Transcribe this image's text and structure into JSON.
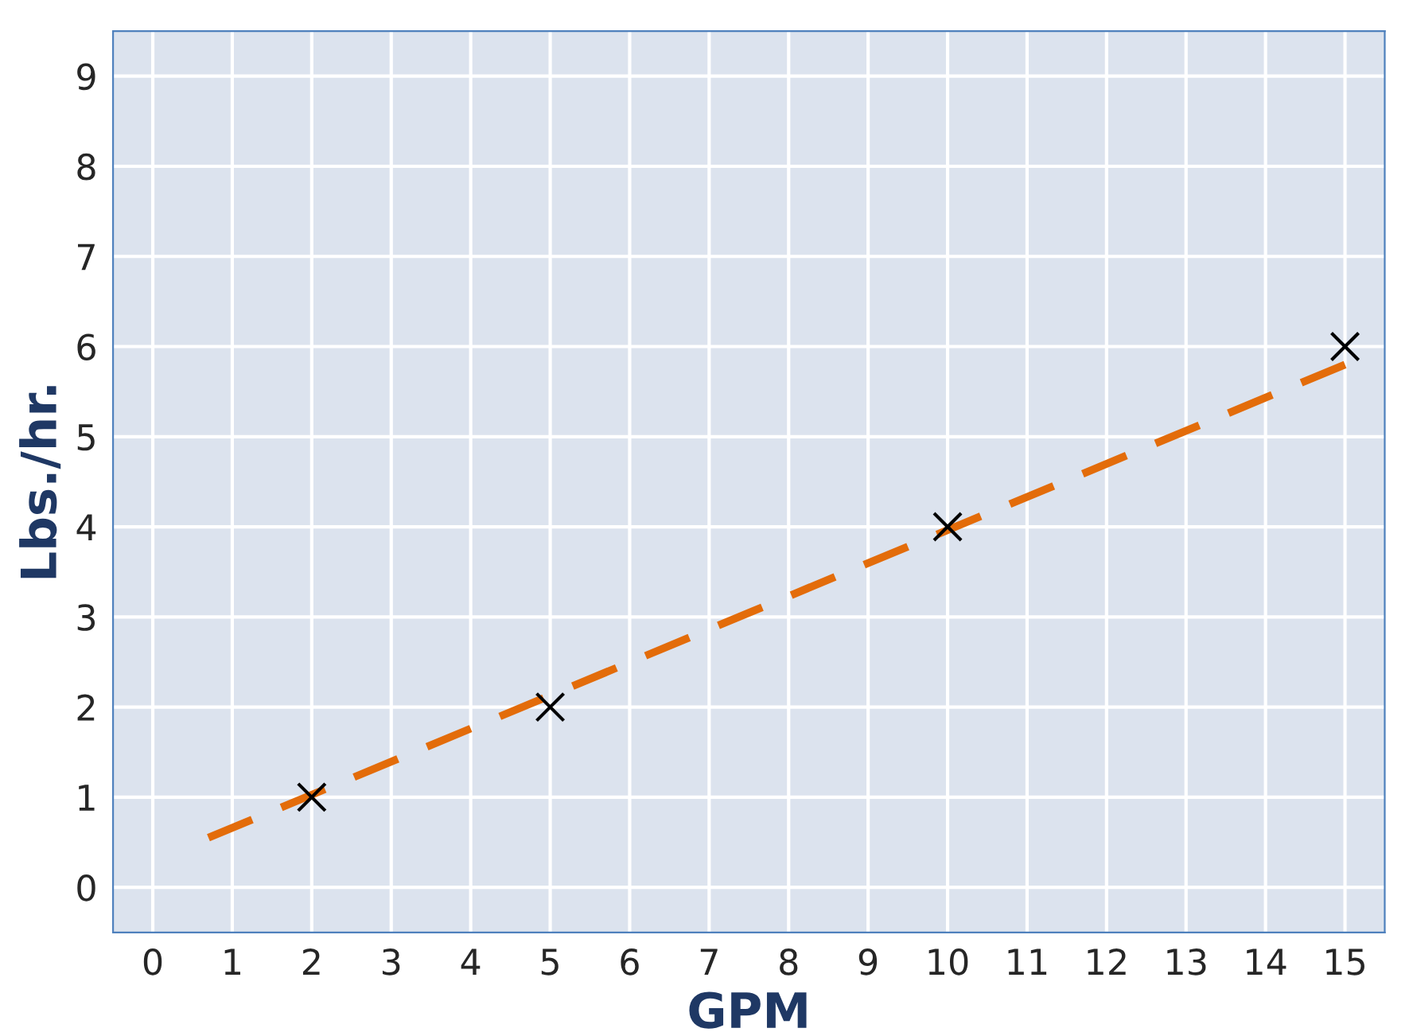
{
  "chart_data": {
    "type": "scatter",
    "xlabel": "GPM",
    "ylabel": "Lbs./hr.",
    "xlim": [
      -0.5,
      15.5
    ],
    "ylim": [
      -0.5,
      9.5
    ],
    "xticks": [
      0,
      1,
      2,
      3,
      4,
      5,
      6,
      7,
      8,
      9,
      10,
      11,
      12,
      13,
      14,
      15
    ],
    "yticks": [
      0,
      1,
      2,
      3,
      4,
      5,
      6,
      7,
      8,
      9
    ],
    "grid": true,
    "series": [
      {
        "type": "line",
        "color": "#e36c0a",
        "line_style": "dashed",
        "marker": "none",
        "x": [
          0.7,
          15
        ],
        "values": [
          0.55,
          5.8
        ]
      },
      {
        "color": "#000000",
        "marker": "cross",
        "x": [
          2,
          5,
          10,
          15
        ],
        "values": [
          1,
          2,
          4,
          6
        ]
      }
    ]
  }
}
